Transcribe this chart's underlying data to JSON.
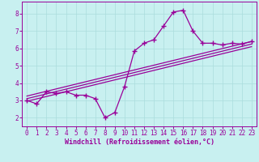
{
  "background_color": "#c8f0f0",
  "line_color": "#990099",
  "marker": "+",
  "marker_size": 4,
  "linewidth": 0.9,
  "xlim": [
    -0.5,
    23.5
  ],
  "ylim": [
    1.5,
    8.7
  ],
  "yticks": [
    2,
    3,
    4,
    5,
    6,
    7,
    8
  ],
  "xticks": [
    0,
    1,
    2,
    3,
    4,
    5,
    6,
    7,
    8,
    9,
    10,
    11,
    12,
    13,
    14,
    15,
    16,
    17,
    18,
    19,
    20,
    21,
    22,
    23
  ],
  "xlabel": "Windchill (Refroidissement éolien,°C)",
  "xlabel_fontsize": 6.0,
  "tick_fontsize": 5.5,
  "grid_color": "#aadddd",
  "series": [
    [
      0,
      3.0
    ],
    [
      1,
      2.8
    ],
    [
      2,
      3.5
    ],
    [
      3,
      3.4
    ],
    [
      4,
      3.5
    ],
    [
      5,
      3.3
    ],
    [
      6,
      3.3
    ],
    [
      7,
      3.1
    ],
    [
      8,
      2.0
    ],
    [
      9,
      2.3
    ],
    [
      10,
      3.8
    ],
    [
      11,
      5.85
    ],
    [
      12,
      6.3
    ],
    [
      13,
      6.5
    ],
    [
      14,
      7.3
    ],
    [
      15,
      8.1
    ],
    [
      16,
      8.2
    ],
    [
      17,
      7.0
    ],
    [
      18,
      6.3
    ],
    [
      19,
      6.3
    ],
    [
      20,
      6.2
    ],
    [
      21,
      6.3
    ],
    [
      22,
      6.25
    ],
    [
      23,
      6.4
    ]
  ],
  "regression_lines": [
    {
      "x0": 0,
      "y0": 2.95,
      "x1": 23,
      "y1": 6.1
    },
    {
      "x0": 0,
      "y0": 3.1,
      "x1": 23,
      "y1": 6.25
    },
    {
      "x0": 0,
      "y0": 3.25,
      "x1": 23,
      "y1": 6.4
    }
  ]
}
